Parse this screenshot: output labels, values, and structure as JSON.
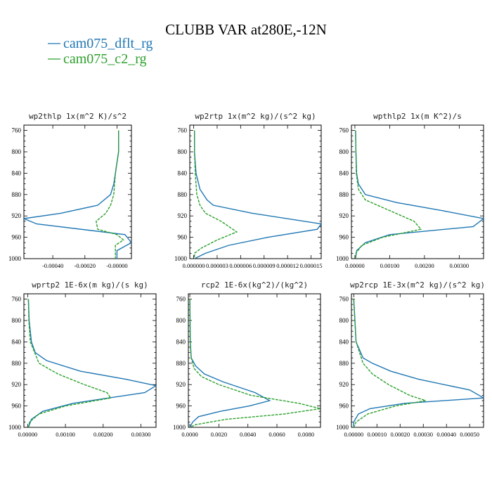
{
  "figure": {
    "title": "CLUBB VAR at280E,-12N",
    "legend": [
      {
        "label": "cam075_dflt_rg",
        "color": "#1f77b4",
        "style": "solid"
      },
      {
        "label": "cam075_c2_rg",
        "color": "#2ca02c",
        "style": "dashed"
      }
    ]
  },
  "chart_data": [
    {
      "type": "line",
      "title": "wp2thlp  1x(m^2 K)/s^2",
      "ylim": [
        1000,
        750
      ],
      "yticks": [
        760,
        800,
        840,
        880,
        920,
        960,
        1000
      ],
      "xlim": [
        -0.00058,
        9e-05
      ],
      "xticks": [
        -0.0004,
        -0.0002,
        0.0
      ],
      "xticklabels": [
        "-0.00040",
        "-0.00020",
        "-0.00000"
      ],
      "series": [
        {
          "name": "cam075_dflt_rg",
          "y": [
            760,
            800,
            840,
            860,
            880,
            900,
            915,
            925,
            935,
            955,
            970,
            985,
            1000
          ],
          "x": [
            1e-05,
            1e-05,
            -1e-05,
            -2e-05,
            -4e-05,
            -0.00012,
            -0.00035,
            -0.00058,
            -0.0005,
            5e-05,
            9e-05,
            0.0,
            0.0
          ]
        },
        {
          "name": "cam075_c2_rg",
          "y": [
            760,
            800,
            840,
            880,
            900,
            915,
            930,
            945,
            955,
            965,
            975,
            990,
            1000
          ],
          "x": [
            1e-05,
            1e-05,
            -1e-05,
            -2e-05,
            -4e-05,
            -7e-05,
            -0.00013,
            -0.00012,
            0.0,
            4e-05,
            -1e-05,
            -1e-05,
            -1e-05
          ]
        }
      ]
    },
    {
      "type": "line",
      "title": "wp2rtp  1x(m^2 kg)/(s^2 kg)",
      "ylim": [
        1000,
        750
      ],
      "yticks": [
        760,
        800,
        840,
        880,
        920,
        960,
        1000
      ],
      "xlim": [
        -5e-07,
        1.63e-05
      ],
      "xticks": [
        0.0,
        3e-06,
        6e-06,
        9e-06,
        1.2e-05,
        1.5e-05
      ],
      "xticklabels": [
        "0.000000",
        "0.000003",
        "0.000006",
        "0.000009",
        "0.000012",
        "0.000015"
      ],
      "series": [
        {
          "name": "cam075_dflt_rg",
          "y": [
            760,
            800,
            840,
            870,
            890,
            900,
            915,
            935,
            945,
            960,
            975,
            990,
            1000
          ],
          "x": [
            1e-07,
            1e-07,
            3e-07,
            8e-07,
            1.7e-06,
            2.5e-06,
            7.5e-06,
            1.63e-05,
            1.58e-05,
            9.5e-06,
            4.5e-06,
            1.5e-06,
            1e-07
          ]
        },
        {
          "name": "cam075_c2_rg",
          "y": [
            760,
            800,
            840,
            880,
            900,
            915,
            930,
            950,
            965,
            980,
            990,
            1000
          ],
          "x": [
            1e-07,
            1e-07,
            2e-07,
            4e-07,
            8e-07,
            1.5e-06,
            3.5e-06,
            5.5e-06,
            3e-06,
            1e-06,
            1e-07,
            1e-07
          ]
        }
      ]
    },
    {
      "type": "line",
      "title": "wpthlp2  1x(m K^2)/s",
      "ylim": [
        1000,
        750
      ],
      "yticks": [
        760,
        800,
        840,
        880,
        920,
        960,
        1000
      ],
      "xlim": [
        -0.0001,
        0.0037
      ],
      "xticks": [
        0.0,
        0.001,
        0.002,
        0.003
      ],
      "xticklabels": [
        "0.00000",
        "0.00100",
        "0.00200",
        "0.00300"
      ],
      "series": [
        {
          "name": "cam075_dflt_rg",
          "y": [
            760,
            800,
            840,
            860,
            880,
            895,
            910,
            925,
            940,
            955,
            970,
            985,
            1000
          ],
          "x": [
            2e-05,
            3e-05,
            5e-05,
            0.0001,
            0.0003,
            0.0012,
            0.0025,
            0.0037,
            0.0034,
            0.001,
            0.0003,
            5e-05,
            2e-05
          ]
        },
        {
          "name": "cam075_c2_rg",
          "y": [
            760,
            800,
            840,
            870,
            890,
            910,
            930,
            945,
            960,
            975,
            990,
            1000
          ],
          "x": [
            2e-05,
            3e-05,
            4e-05,
            0.0001,
            0.0003,
            0.001,
            0.0017,
            0.0019,
            0.0008,
            0.0002,
            3e-05,
            2e-05
          ]
        }
      ]
    },
    {
      "type": "line",
      "title": "wprtp2  1E-6x(m kg)/(s kg)",
      "ylim": [
        1000,
        750
      ],
      "yticks": [
        760,
        800,
        840,
        880,
        920,
        960,
        1000
      ],
      "xlim": [
        -0.0001,
        0.0034
      ],
      "xticks": [
        0.0,
        0.001,
        0.002,
        0.003
      ],
      "xticklabels": [
        "0.00000",
        "0.00100",
        "0.00200",
        "0.00300"
      ],
      "series": [
        {
          "name": "cam075_dflt_rg",
          "y": [
            760,
            800,
            840,
            860,
            875,
            895,
            910,
            922,
            935,
            955,
            970,
            985,
            1000
          ],
          "x": [
            2e-05,
            4e-05,
            0.0001,
            0.0002,
            0.0005,
            0.0014,
            0.0026,
            0.0034,
            0.0031,
            0.0012,
            0.0004,
            0.0001,
            2e-05
          ]
        },
        {
          "name": "cam075_c2_rg",
          "y": [
            760,
            800,
            840,
            880,
            900,
            920,
            935,
            945,
            960,
            975,
            990,
            1000
          ],
          "x": [
            2e-05,
            3e-05,
            7e-05,
            0.0003,
            0.0008,
            0.0015,
            0.0021,
            0.0022,
            0.001,
            0.0003,
            5e-05,
            2e-05
          ]
        }
      ]
    },
    {
      "type": "line",
      "title": "rcp2  1E-6x(kg^2)/(kg^2)",
      "ylim": [
        1000,
        750
      ],
      "yticks": [
        760,
        800,
        840,
        880,
        920,
        960,
        1000
      ],
      "xlim": [
        -0.0001,
        0.009
      ],
      "xticks": [
        0.0,
        0.002,
        0.004,
        0.006,
        0.008
      ],
      "xticklabels": [
        "0.0000",
        "0.0020",
        "0.0040",
        "0.0060",
        "0.0080"
      ],
      "series": [
        {
          "name": "cam075_dflt_rg",
          "y": [
            760,
            840,
            870,
            885,
            900,
            915,
            935,
            950,
            960,
            970,
            980,
            990,
            1000
          ],
          "x": [
            0.0,
            3e-05,
            0.0001,
            0.0004,
            0.001,
            0.0023,
            0.0045,
            0.0055,
            0.0041,
            0.0021,
            0.0006,
            0.0002,
            0.0
          ]
        },
        {
          "name": "cam075_c2_rg",
          "y": [
            760,
            840,
            870,
            890,
            905,
            920,
            940,
            955,
            965,
            975,
            985,
            995,
            1000
          ],
          "x": [
            0.0,
            3e-05,
            0.0001,
            0.0003,
            0.0008,
            0.002,
            0.0042,
            0.0075,
            0.009,
            0.0065,
            0.0025,
            0.0004,
            0.0
          ]
        }
      ]
    },
    {
      "type": "line",
      "title": "wp2rcp  1E-3x(m^2 kg)/(s^2 kg)",
      "ylim": [
        1000,
        750
      ],
      "yticks": [
        760,
        800,
        840,
        880,
        920,
        960,
        1000
      ],
      "xlim": [
        -1e-05,
        0.00056
      ],
      "xticks": [
        0.0,
        0.0001,
        0.0002,
        0.0003,
        0.0004,
        0.0005
      ],
      "xticklabels": [
        "0.00000",
        "0.00010",
        "0.00020",
        "0.00030",
        "0.00040",
        "0.00050"
      ],
      "series": [
        {
          "name": "cam075_dflt_rg",
          "y": [
            760,
            840,
            870,
            880,
            895,
            910,
            930,
            945,
            955,
            965,
            975,
            990,
            1000
          ],
          "x": [
            0.0,
            1e-05,
            4e-05,
            8e-05,
            0.00016,
            0.00028,
            0.0005,
            0.00056,
            0.00022,
            7e-05,
            2e-05,
            0.0,
            0.0
          ]
        },
        {
          "name": "cam075_c2_rg",
          "y": [
            760,
            840,
            880,
            900,
            920,
            940,
            950,
            960,
            975,
            990,
            1000
          ],
          "x": [
            0.0,
            1e-05,
            4e-05,
            8e-05,
            0.00015,
            0.00024,
            0.00031,
            0.00018,
            6e-05,
            1e-05,
            0.0
          ]
        }
      ]
    }
  ]
}
